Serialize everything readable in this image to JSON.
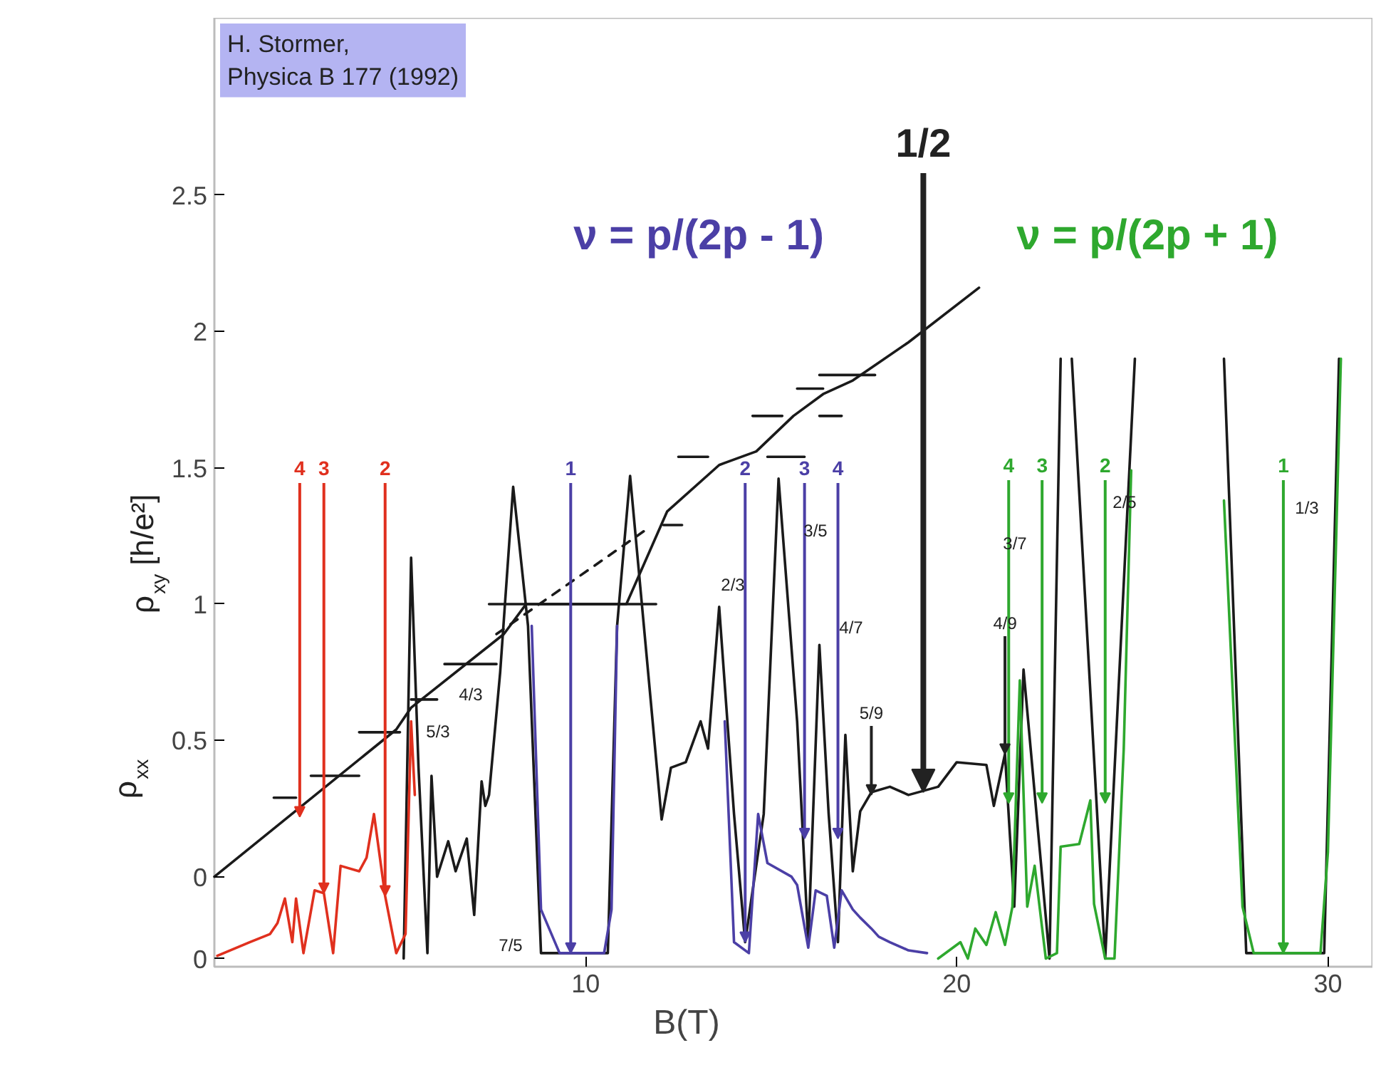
{
  "chart_data": {
    "type": "line",
    "xlabel": "B(T)",
    "ylabel": "ρ$_{xy}$ [h/e²]",
    "xlim": [
      0,
      31.2
    ],
    "ylim": [
      -0.33,
      3.15
    ],
    "xticks": [
      10,
      20,
      30
    ],
    "yticks": [
      {
        "value": -0.3,
        "label": "0"
      },
      0,
      0.5,
      1,
      1.5,
      2,
      2.5
    ],
    "grid": false,
    "series": [
      {
        "color": "#1a1a1a",
        "x": [
          0,
          4.9,
          5.3,
          7.8,
          8.4,
          11.1,
          12.2,
          13.6,
          14.6,
          15.6,
          16.4,
          17.2,
          18.7,
          20.6
        ],
        "values": [
          0,
          0.54,
          0.62,
          0.89,
          1.0,
          1.0,
          1.34,
          1.51,
          1.56,
          1.69,
          1.77,
          1.82,
          1.96,
          2.16
        ]
      },
      {
        "color": "#1a1a1a",
        "line_style": "dashed",
        "x": [
          7.6,
          11.6
        ],
        "values": [
          0.89,
          1.27
        ]
      },
      {
        "color": "#1a1a1a",
        "x": [
          1.6,
          2.2,
          null,
          2.6,
          3.9,
          null,
          3.9,
          5.0,
          null,
          5.3,
          6.0,
          null,
          6.2,
          7.6,
          null,
          7.4,
          11.9,
          null,
          12.1,
          12.6,
          null,
          12.5,
          13.3,
          null,
          14.9,
          15.9,
          null,
          14.5,
          15.3,
          null,
          16.3,
          16.9,
          null,
          15.7,
          16.4,
          null,
          16.3,
          17.8
        ],
        "values": [
          0.29,
          0.29,
          null,
          0.37,
          0.37,
          null,
          0.53,
          0.53,
          null,
          0.65,
          0.65,
          null,
          0.78,
          0.78,
          null,
          1.0,
          1.0,
          null,
          1.29,
          1.29,
          null,
          1.54,
          1.54,
          null,
          1.54,
          1.54,
          null,
          1.69,
          1.69,
          null,
          1.69,
          1.69,
          null,
          1.79,
          1.79,
          null,
          1.84,
          1.84
        ]
      },
      {
        "color": "#1a1a1a",
        "x": [
          5.1,
          5.3,
          5.5,
          5.74,
          5.85,
          6.0,
          6.3,
          6.5,
          6.8,
          7.0,
          7.2,
          7.3,
          7.4,
          7.7,
          8.05,
          8.45,
          8.8,
          10.6,
          10.85,
          11.2,
          12.05,
          12.3,
          12.7,
          13.1,
          13.3,
          13.6,
          14.0,
          14.3,
          14.8,
          15.2,
          15.7,
          16.0,
          16.3,
          16.55,
          16.8,
          17.0,
          17.2,
          17.4,
          17.7,
          18.2,
          18.7,
          19.5,
          20.0,
          20.8,
          21.0,
          21.3,
          21.55,
          21.8,
          22.5,
          22.8,
          null,
          23.1,
          24.0,
          24.8,
          null,
          27.2,
          27.8,
          29.9,
          30.3
        ],
        "values": [
          -0.3,
          1.17,
          0.4,
          -0.28,
          0.37,
          0.0,
          0.13,
          0.02,
          0.14,
          -0.14,
          0.35,
          0.26,
          0.3,
          0.75,
          1.43,
          0.92,
          -0.28,
          -0.28,
          0.92,
          1.47,
          0.21,
          0.4,
          0.42,
          0.57,
          0.47,
          0.99,
          0.23,
          -0.24,
          0.23,
          1.46,
          0.57,
          -0.24,
          0.85,
          0.23,
          -0.24,
          0.52,
          0.02,
          0.24,
          0.31,
          0.33,
          0.3,
          0.33,
          0.42,
          0.41,
          0.26,
          0.45,
          -0.11,
          0.76,
          -0.3,
          1.9,
          null,
          1.9,
          -0.3,
          1.9,
          null,
          1.9,
          -0.28,
          -0.28,
          1.9
        ]
      },
      {
        "color": "#e0301e",
        "x": [
          0.08,
          0.95,
          1.5,
          1.7,
          1.9,
          2.1,
          2.2,
          2.4,
          2.7,
          2.95,
          3.2,
          3.4,
          3.9,
          4.1,
          4.3,
          4.6,
          4.9,
          5.15,
          5.3,
          5.4
        ],
        "values": [
          -0.29,
          -0.24,
          -0.21,
          -0.17,
          -0.08,
          -0.24,
          -0.08,
          -0.28,
          -0.05,
          -0.06,
          -0.28,
          0.04,
          0.02,
          0.07,
          0.23,
          -0.07,
          -0.28,
          -0.21,
          0.57,
          0.3
        ]
      },
      {
        "color": "#4b3fa6",
        "x": [
          8.55,
          8.8,
          9.3,
          10.5,
          10.7,
          10.85,
          null,
          13.75,
          14.0,
          14.4,
          14.65,
          14.9,
          15.55,
          15.7,
          16.0,
          16.2,
          16.5,
          16.7,
          16.9,
          17.2,
          17.4,
          17.7,
          17.9,
          18.2,
          18.7,
          19.2
        ],
        "values": [
          0.92,
          -0.12,
          -0.28,
          -0.28,
          -0.12,
          0.92,
          null,
          0.57,
          -0.24,
          -0.28,
          0.23,
          0.05,
          0.0,
          -0.03,
          -0.26,
          -0.05,
          -0.07,
          -0.26,
          -0.05,
          -0.12,
          -0.15,
          -0.19,
          -0.22,
          -0.24,
          -0.27,
          -0.28
        ]
      },
      {
        "color": "#2ea82e",
        "x": [
          19.5,
          20.1,
          20.3,
          20.5,
          20.8,
          21.05,
          21.3,
          21.5,
          21.7,
          21.9,
          22.1,
          22.4,
          22.7,
          22.8,
          23.3,
          23.6,
          23.7,
          24.0,
          24.25,
          24.5,
          24.7,
          null,
          27.2,
          27.7,
          28.0,
          29.8,
          30.0,
          30.35
        ],
        "values": [
          -0.3,
          -0.24,
          -0.3,
          -0.19,
          -0.25,
          -0.13,
          -0.25,
          -0.11,
          0.72,
          -0.11,
          0.04,
          -0.3,
          -0.28,
          0.11,
          0.12,
          0.28,
          -0.1,
          -0.3,
          -0.3,
          0.47,
          1.49,
          null,
          1.38,
          -0.11,
          -0.28,
          -0.28,
          0.09,
          1.9
        ]
      }
    ],
    "annotations": [
      "H. Stormer,\nPhysica B 177 (1992)",
      "ν = p/(2p - 1)",
      "ν = p/(2p + 1)",
      "ρ$_{xx}$",
      {
        "text": "4",
        "x": 2.3,
        "y": 0.22
      },
      {
        "text": "3",
        "x": 2.95,
        "y": -0.06
      },
      {
        "text": "2",
        "x": 4.6,
        "y": -0.07
      },
      {
        "text": "1",
        "x": 9.6,
        "y": -0.28
      },
      {
        "text": "2",
        "x": 14.3,
        "y": -0.24
      },
      {
        "text": "3",
        "x": 15.9,
        "y": 0.14
      },
      {
        "text": "4",
        "x": 16.8,
        "y": 0.14
      },
      {
        "text": "4",
        "x": 21.4,
        "y": 0.27
      },
      {
        "text": "3",
        "x": 22.3,
        "y": 0.27
      },
      {
        "text": "2",
        "x": 24.0,
        "y": 0.27
      },
      {
        "text": "1",
        "x": 28.8,
        "y": -0.28
      },
      {
        "text": "1/2",
        "x": 19.1,
        "y": 0.31
      },
      "5/3",
      "4/3",
      "7/5",
      "2/3",
      "3/5",
      "4/7",
      {
        "text": "5/9",
        "x": 17.7,
        "y": 0.3
      },
      {
        "text": "4/9",
        "x": 21.3,
        "y": 0.45
      },
      "3/7",
      "2/5",
      "1/3"
    ]
  }
}
